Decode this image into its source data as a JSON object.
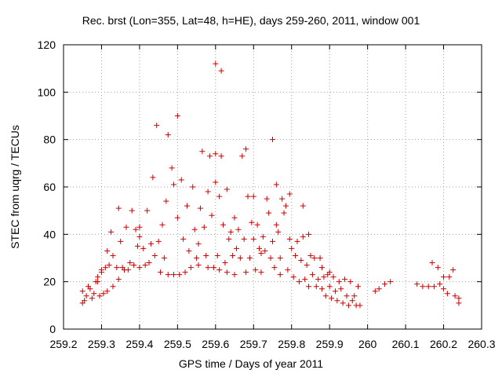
{
  "chart_data": {
    "type": "scatter",
    "title": "Rec. brst (Lon=355, Lat=48, h=HE), days 259-260, 2011, window 001",
    "xlabel": "GPS time / Days of year 2011",
    "ylabel": "STEC from uqrg / TECUs",
    "xlim": [
      259.2,
      260.3
    ],
    "ylim": [
      0,
      120
    ],
    "xticks": [
      "259.2",
      "259.3",
      "259.4",
      "259.5",
      "259.6",
      "259.7",
      "259.8",
      "259.9",
      "260",
      "260.1",
      "260.2",
      "260.3"
    ],
    "yticks": [
      "0",
      "20",
      "40",
      "60",
      "80",
      "100",
      "120"
    ],
    "grid": true,
    "marker": "+",
    "color": "#cc0000",
    "points": [
      [
        259.25,
        16
      ],
      [
        259.25,
        11
      ],
      [
        259.255,
        12
      ],
      [
        259.26,
        14
      ],
      [
        259.265,
        18
      ],
      [
        259.27,
        17
      ],
      [
        259.275,
        13
      ],
      [
        259.28,
        15
      ],
      [
        259.285,
        20
      ],
      [
        259.29,
        22
      ],
      [
        259.29,
        20
      ],
      [
        259.295,
        14
      ],
      [
        259.3,
        24
      ],
      [
        259.3,
        25
      ],
      [
        259.305,
        15
      ],
      [
        259.31,
        26
      ],
      [
        259.315,
        33
      ],
      [
        259.315,
        16
      ],
      [
        259.32,
        27
      ],
      [
        259.325,
        41
      ],
      [
        259.33,
        31
      ],
      [
        259.33,
        18
      ],
      [
        259.34,
        26
      ],
      [
        259.345,
        51
      ],
      [
        259.345,
        21
      ],
      [
        259.35,
        37
      ],
      [
        259.355,
        26
      ],
      [
        259.36,
        25
      ],
      [
        259.365,
        43
      ],
      [
        259.37,
        25
      ],
      [
        259.375,
        28
      ],
      [
        259.38,
        50
      ],
      [
        259.385,
        27
      ],
      [
        259.39,
        42
      ],
      [
        259.395,
        35
      ],
      [
        259.4,
        43
      ],
      [
        259.4,
        39
      ],
      [
        259.4,
        26
      ],
      [
        259.41,
        34
      ],
      [
        259.415,
        27
      ],
      [
        259.42,
        50
      ],
      [
        259.425,
        28
      ],
      [
        259.43,
        36
      ],
      [
        259.435,
        64
      ],
      [
        259.44,
        31
      ],
      [
        259.445,
        86
      ],
      [
        259.45,
        37
      ],
      [
        259.455,
        24
      ],
      [
        259.46,
        44
      ],
      [
        259.465,
        30
      ],
      [
        259.47,
        54
      ],
      [
        259.475,
        82
      ],
      [
        259.475,
        23
      ],
      [
        259.485,
        68
      ],
      [
        259.49,
        61
      ],
      [
        259.49,
        23
      ],
      [
        259.5,
        90
      ],
      [
        259.5,
        47
      ],
      [
        259.505,
        23
      ],
      [
        259.51,
        63
      ],
      [
        259.515,
        38
      ],
      [
        259.52,
        24
      ],
      [
        259.525,
        52
      ],
      [
        259.53,
        33
      ],
      [
        259.535,
        26
      ],
      [
        259.54,
        60
      ],
      [
        259.545,
        42
      ],
      [
        259.55,
        30
      ],
      [
        259.555,
        36
      ],
      [
        259.555,
        27
      ],
      [
        259.56,
        51
      ],
      [
        259.565,
        75
      ],
      [
        259.57,
        43
      ],
      [
        259.575,
        31
      ],
      [
        259.58,
        58
      ],
      [
        259.58,
        26
      ],
      [
        259.585,
        73
      ],
      [
        259.59,
        48
      ],
      [
        259.595,
        26
      ],
      [
        259.6,
        112
      ],
      [
        259.6,
        74
      ],
      [
        259.6,
        62
      ],
      [
        259.605,
        31
      ],
      [
        259.61,
        56
      ],
      [
        259.61,
        25
      ],
      [
        259.615,
        109
      ],
      [
        259.615,
        73
      ],
      [
        259.62,
        44
      ],
      [
        259.625,
        28
      ],
      [
        259.63,
        59
      ],
      [
        259.63,
        24
      ],
      [
        259.635,
        38
      ],
      [
        259.64,
        41
      ],
      [
        259.645,
        31
      ],
      [
        259.65,
        47
      ],
      [
        259.65,
        23
      ],
      [
        259.655,
        34
      ],
      [
        259.66,
        42
      ],
      [
        259.665,
        30
      ],
      [
        259.67,
        73
      ],
      [
        259.675,
        38
      ],
      [
        259.68,
        76
      ],
      [
        259.68,
        24
      ],
      [
        259.685,
        56
      ],
      [
        259.69,
        30
      ],
      [
        259.695,
        45
      ],
      [
        259.7,
        56
      ],
      [
        259.7,
        38
      ],
      [
        259.705,
        25
      ],
      [
        259.71,
        44
      ],
      [
        259.715,
        34
      ],
      [
        259.72,
        32
      ],
      [
        259.72,
        24
      ],
      [
        259.725,
        39
      ],
      [
        259.73,
        33
      ],
      [
        259.735,
        55
      ],
      [
        259.74,
        49
      ],
      [
        259.745,
        30
      ],
      [
        259.75,
        80
      ],
      [
        259.75,
        37
      ],
      [
        259.755,
        26
      ],
      [
        259.76,
        61
      ],
      [
        259.76,
        44
      ],
      [
        259.765,
        41
      ],
      [
        259.77,
        30
      ],
      [
        259.77,
        23
      ],
      [
        259.775,
        55
      ],
      [
        259.78,
        49
      ],
      [
        259.785,
        52
      ],
      [
        259.79,
        25
      ],
      [
        259.795,
        57
      ],
      [
        259.795,
        38
      ],
      [
        259.8,
        34
      ],
      [
        259.805,
        22
      ],
      [
        259.81,
        31
      ],
      [
        259.815,
        37
      ],
      [
        259.82,
        20
      ],
      [
        259.825,
        29
      ],
      [
        259.83,
        52
      ],
      [
        259.83,
        39
      ],
      [
        259.835,
        21
      ],
      [
        259.84,
        27
      ],
      [
        259.845,
        40
      ],
      [
        259.845,
        18
      ],
      [
        259.85,
        31
      ],
      [
        259.855,
        23
      ],
      [
        259.86,
        30
      ],
      [
        259.865,
        18
      ],
      [
        259.87,
        21
      ],
      [
        259.875,
        30
      ],
      [
        259.88,
        26
      ],
      [
        259.88,
        17
      ],
      [
        259.885,
        22
      ],
      [
        259.89,
        14
      ],
      [
        259.895,
        23
      ],
      [
        259.9,
        24
      ],
      [
        259.9,
        18
      ],
      [
        259.905,
        13
      ],
      [
        259.91,
        22
      ],
      [
        259.915,
        16
      ],
      [
        259.92,
        12
      ],
      [
        259.925,
        20
      ],
      [
        259.93,
        17
      ],
      [
        259.935,
        11
      ],
      [
        259.94,
        21
      ],
      [
        259.945,
        14
      ],
      [
        259.95,
        10
      ],
      [
        259.955,
        20
      ],
      [
        259.96,
        12
      ],
      [
        259.965,
        14
      ],
      [
        259.97,
        10
      ],
      [
        259.975,
        18
      ],
      [
        259.98,
        10
      ],
      [
        260.02,
        16
      ],
      [
        260.03,
        17
      ],
      [
        260.045,
        19
      ],
      [
        260.06,
        20
      ],
      [
        260.13,
        19
      ],
      [
        260.145,
        18
      ],
      [
        260.16,
        18
      ],
      [
        260.17,
        28
      ],
      [
        260.175,
        18
      ],
      [
        260.185,
        26
      ],
      [
        260.19,
        19
      ],
      [
        260.2,
        22
      ],
      [
        260.2,
        17
      ],
      [
        260.21,
        15
      ],
      [
        260.215,
        22
      ],
      [
        260.225,
        25
      ],
      [
        260.23,
        14
      ],
      [
        260.24,
        11
      ],
      [
        260.24,
        13
      ]
    ]
  }
}
